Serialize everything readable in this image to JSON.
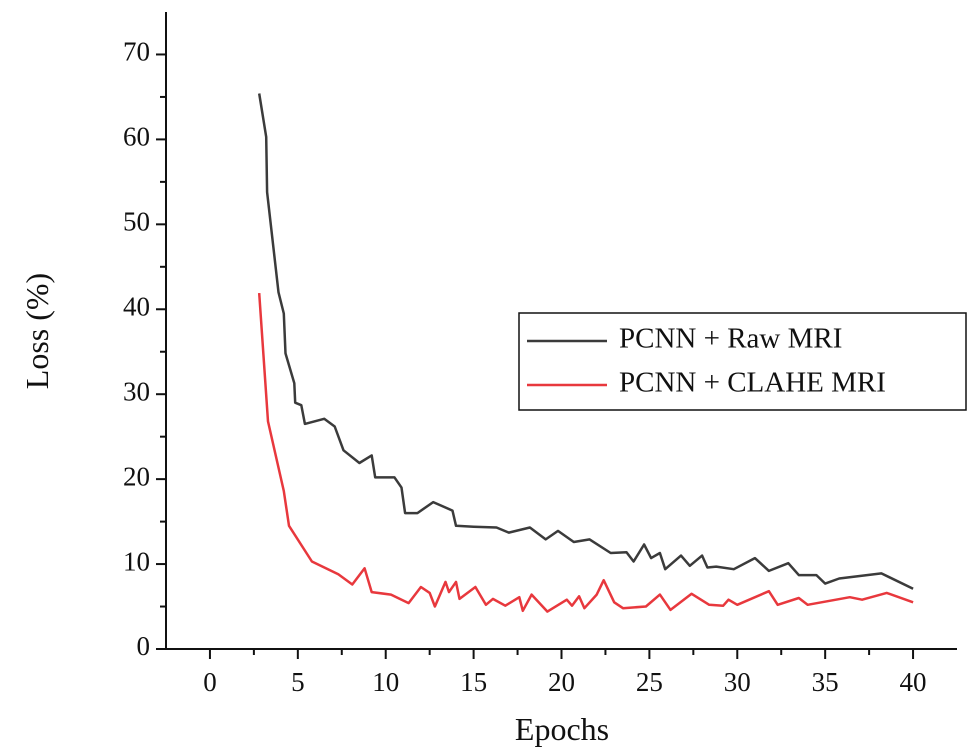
{
  "chart_data": {
    "type": "line",
    "x_label": "Epochs",
    "y_label": "Loss (%)",
    "xlim": [
      -2.5,
      42.5
    ],
    "xticks": [
      0,
      5,
      10,
      15,
      20,
      25,
      30,
      35,
      40
    ],
    "xminorticks": [
      2.5,
      7.5,
      12.5,
      17.5,
      22.5,
      27.5,
      32.5,
      37.5
    ],
    "ylim": [
      0,
      75
    ],
    "yticks": [
      0,
      10,
      20,
      30,
      40,
      50,
      60,
      70
    ],
    "yminorticks": [
      5,
      15,
      25,
      35,
      45,
      55,
      65
    ],
    "legend": "right",
    "series": [
      {
        "name": "PCNN + Raw MRI",
        "color": "#3b3b3b",
        "x": [
          2.8,
          3.2,
          3.25,
          3.9,
          4.2,
          4.3,
          4.8,
          4.85,
          5.2,
          5.4,
          6.5,
          7.1,
          7.6,
          8.5,
          9.2,
          9.4,
          10.5,
          10.9,
          11.1,
          11.8,
          12.7,
          13.8,
          14.0,
          15.0,
          16.3,
          17.0,
          18.2,
          19.1,
          19.8,
          20.7,
          21.6,
          22.8,
          23.7,
          24.1,
          24.7,
          25.1,
          25.6,
          25.9,
          26.8,
          27.3,
          28.0,
          28.3,
          28.8,
          29.8,
          31.0,
          31.8,
          32.9,
          33.5,
          34.5,
          35.0,
          35.8,
          38.2,
          40
        ],
        "values": [
          65.4,
          60.3,
          53.8,
          42,
          39.5,
          34.8,
          31.3,
          29,
          28.7,
          26.5,
          27.1,
          26.2,
          23.4,
          21.9,
          22.8,
          20.2,
          20.2,
          19,
          16,
          16,
          17.3,
          16.3,
          14.5,
          14.4,
          14.3,
          13.7,
          14.3,
          12.9,
          13.9,
          12.6,
          12.9,
          11.3,
          11.4,
          10.3,
          12.3,
          10.7,
          11.3,
          9.4,
          11,
          9.8,
          11,
          9.6,
          9.7,
          9.4,
          10.7,
          9.2,
          10.1,
          8.7,
          8.7,
          7.7,
          8.3,
          8.9,
          7.1
        ]
      },
      {
        "name": "PCNN + CLAHE MRI",
        "color": "#e8383d",
        "x": [
          2.8,
          3.3,
          4.2,
          4.5,
          5.8,
          7.3,
          8.1,
          8.8,
          9.2,
          10.3,
          11.3,
          12.0,
          12.5,
          12.8,
          13.4,
          13.6,
          14.0,
          14.2,
          15.1,
          15.7,
          16.1,
          16.8,
          17.6,
          17.8,
          18.3,
          19.2,
          20.3,
          20.6,
          21.0,
          21.3,
          22.0,
          22.4,
          23.0,
          23.5,
          24.8,
          25.6,
          26.2,
          27.4,
          28.4,
          29.2,
          29.5,
          30.0,
          31.8,
          32.3,
          33.5,
          34.0,
          36.4,
          37.1,
          38.5,
          40
        ],
        "values": [
          41.9,
          26.8,
          18.6,
          14.5,
          10.3,
          8.8,
          7.6,
          9.5,
          6.7,
          6.4,
          5.4,
          7.3,
          6.6,
          5,
          7.9,
          6.7,
          7.9,
          5.9,
          7.3,
          5.2,
          5.9,
          5.1,
          6.1,
          4.5,
          6.4,
          4.4,
          5.8,
          5.1,
          6.2,
          4.8,
          6.4,
          8.1,
          5.5,
          4.8,
          5,
          6.4,
          4.6,
          6.5,
          5.2,
          5.1,
          5.8,
          5.2,
          6.8,
          5.2,
          6,
          5.2,
          6.1,
          5.8,
          6.6,
          5.5
        ]
      }
    ]
  }
}
